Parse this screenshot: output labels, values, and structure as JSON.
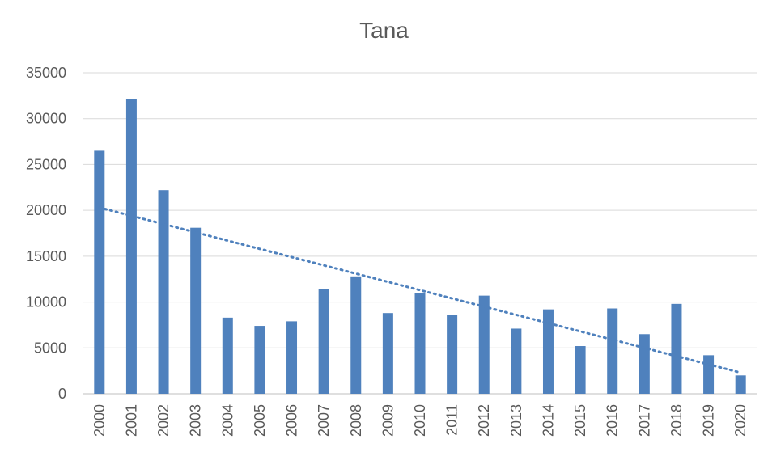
{
  "chart_data": {
    "type": "bar",
    "title": "Tana",
    "xlabel": "",
    "ylabel": "",
    "categories": [
      "2000",
      "2001",
      "2002",
      "2003",
      "2004",
      "2005",
      "2006",
      "2007",
      "2008",
      "2009",
      "2010",
      "2011",
      "2012",
      "2013",
      "2014",
      "2015",
      "2016",
      "2017",
      "2018",
      "2019",
      "2020"
    ],
    "values": [
      26500,
      32100,
      22200,
      18100,
      8300,
      7400,
      7900,
      11400,
      12800,
      8800,
      11000,
      8600,
      10700,
      7100,
      9200,
      5200,
      9300,
      6500,
      9800,
      4200,
      2000
    ],
    "ylim": [
      0,
      35000
    ],
    "yticks": [
      0,
      5000,
      10000,
      15000,
      20000,
      25000,
      30000,
      35000
    ],
    "grid": true,
    "legend": "none",
    "bar_color": "#4f81bd",
    "trendline": {
      "type": "linear",
      "style": "dotted",
      "color": "#4f81bd",
      "start": 20300,
      "end": 2300
    }
  }
}
